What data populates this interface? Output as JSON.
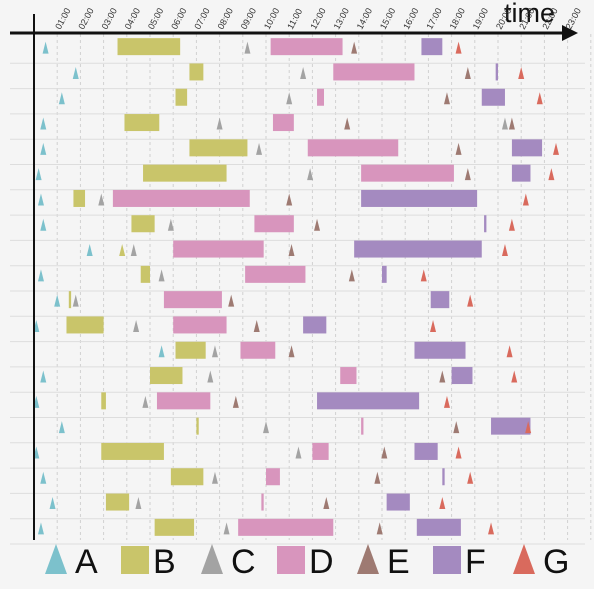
{
  "chart_data": {
    "type": "timeline",
    "time_label": "time",
    "tick_labels": [
      "01:00",
      "02:00",
      "03:00",
      "04:00",
      "05:00",
      "06:00",
      "07:00",
      "08:00",
      "09:00",
      "10:00",
      "11:00",
      "12:00",
      "13:00",
      "14:00",
      "15:00",
      "16:00",
      "17:00",
      "18:00",
      "19:00",
      "20:00",
      "21:00",
      "22:00",
      "23:00"
    ],
    "x_range": [
      0,
      24
    ],
    "grid": true,
    "legend_position": "bottom",
    "legend": [
      {
        "key": "A",
        "shape": "triangle",
        "color": "#7cc1cc"
      },
      {
        "key": "B",
        "shape": "rect",
        "color": "#c9c56a"
      },
      {
        "key": "C",
        "shape": "triangle",
        "color": "#a3a3a3"
      },
      {
        "key": "D",
        "shape": "rect",
        "color": "#d895bd"
      },
      {
        "key": "E",
        "shape": "triangle",
        "color": "#9e7a72"
      },
      {
        "key": "F",
        "shape": "rect",
        "color": "#a48ac0"
      },
      {
        "key": "G",
        "shape": "triangle",
        "color": "#d96a5d"
      }
    ],
    "rows": [
      {
        "A": 0.5,
        "B": [
          3.6,
          6.3
        ],
        "C": 9.2,
        "D": [
          10.2,
          13.3
        ],
        "E": 13.8,
        "F": [
          16.7,
          17.6
        ],
        "G": 18.3
      },
      {
        "A": 1.8,
        "B": [
          6.7,
          7.3
        ],
        "C": 11.6,
        "D": [
          12.9,
          16.4
        ],
        "E": 18.7,
        "F": [
          19.9,
          20.0
        ],
        "G": 21.0
      },
      {
        "A": 1.2,
        "B": [
          6.1,
          6.6
        ],
        "C": 11.0,
        "D": [
          12.2,
          12.5
        ],
        "E": 17.8,
        "F": [
          19.3,
          20.3
        ],
        "G": 21.8
      },
      {
        "A": 0.4,
        "B": [
          3.9,
          5.4
        ],
        "C": 8.0,
        "D": [
          10.3,
          11.2
        ],
        "E": 13.5,
        "F": [
          null,
          null
        ],
        "C2": 20.3,
        "E2": 20.6
      },
      {
        "A": 0.4,
        "B": [
          6.7,
          9.2
        ],
        "C": 9.7,
        "D": [
          11.8,
          15.7
        ],
        "E": 18.3,
        "F": [
          20.6,
          21.9
        ],
        "G": 22.5
      },
      {
        "A": 0.2,
        "B": [
          4.7,
          8.3
        ],
        "C": 11.9,
        "D": [
          14.1,
          18.1
        ],
        "E": 18.7,
        "F": [
          20.6,
          21.4
        ],
        "G": 22.3
      },
      {
        "A": 0.3,
        "B": [
          1.7,
          2.2
        ],
        "C": 2.9,
        "D": [
          3.4,
          9.3
        ],
        "E": 11.0,
        "F": [
          14.1,
          19.1
        ],
        "G": 21.2
      },
      {
        "A": 0.4,
        "B": [
          4.2,
          5.2
        ],
        "C": 5.9,
        "D": [
          9.5,
          11.2
        ],
        "E": 12.2,
        "F": [
          19.4,
          19.5
        ],
        "G": 20.6
      },
      {
        "A": 2.4,
        "B": [
          null,
          null
        ],
        "C": 4.3,
        "D": [
          6.0,
          9.9
        ],
        "E": 11.1,
        "F": [
          13.8,
          19.3
        ],
        "G": 20.3,
        "B2": 3.8
      },
      {
        "A": 0.3,
        "B": [
          4.6,
          5.0
        ],
        "C": 5.5,
        "D": [
          9.1,
          11.7
        ],
        "E": 13.7,
        "F": [
          15.0,
          15.2
        ],
        "G": 16.8
      },
      {
        "A": 1.0,
        "B": [
          1.5,
          1.6
        ],
        "C": 1.8,
        "D": [
          5.6,
          8.1
        ],
        "E": 8.5,
        "F": [
          17.1,
          17.9
        ],
        "G": 18.8
      },
      {
        "A": 0.1,
        "B": [
          1.4,
          3.0
        ],
        "C": 4.4,
        "D": [
          6.0,
          8.3
        ],
        "E": 9.6,
        "F": [
          11.6,
          12.6
        ],
        "G": 17.2
      },
      {
        "A": 5.5,
        "B": [
          6.1,
          7.4
        ],
        "C": 7.8,
        "D": [
          8.9,
          10.4
        ],
        "E": 11.1,
        "F": [
          16.4,
          18.6
        ],
        "G": 20.5
      },
      {
        "A": 0.4,
        "B": [
          5.0,
          6.4
        ],
        "C": 7.6,
        "D": [
          13.2,
          13.9
        ],
        "E": 17.6,
        "F": [
          18.0,
          18.9
        ],
        "G": 20.7
      },
      {
        "A": 0.1,
        "B": [
          2.9,
          3.1
        ],
        "C": 4.8,
        "D": [
          5.3,
          7.6
        ],
        "E": 8.7,
        "F": [
          12.2,
          16.6
        ],
        "G": 17.8
      },
      {
        "A": 1.2,
        "B": [
          7.0,
          7.1
        ],
        "C": 10.0,
        "D": [
          14.1,
          14.2
        ],
        "E": 18.2,
        "F": [
          19.7,
          21.4
        ],
        "G": 21.3
      },
      {
        "A": 0.1,
        "B": [
          2.9,
          5.6
        ],
        "C": 11.4,
        "D": [
          12.0,
          12.7
        ],
        "E": 15.1,
        "F": [
          16.4,
          17.4
        ],
        "G": 18.3
      },
      {
        "A": 0.4,
        "B": [
          5.9,
          7.3
        ],
        "C": 7.8,
        "D": [
          10.0,
          10.6
        ],
        "E": 14.8,
        "F": [
          17.6,
          17.7
        ],
        "G": 18.8
      },
      {
        "A": 0.8,
        "B": [
          3.1,
          4.1
        ],
        "C": 4.5,
        "D": [
          9.8,
          9.9
        ],
        "E": 12.6,
        "F": [
          15.2,
          16.2
        ],
        "G": 17.6
      },
      {
        "A": 0.3,
        "B": [
          5.2,
          6.9
        ],
        "C": 8.3,
        "D": [
          8.8,
          12.9
        ],
        "E": 14.9,
        "F": [
          16.5,
          18.4
        ],
        "G": 19.7
      }
    ]
  }
}
